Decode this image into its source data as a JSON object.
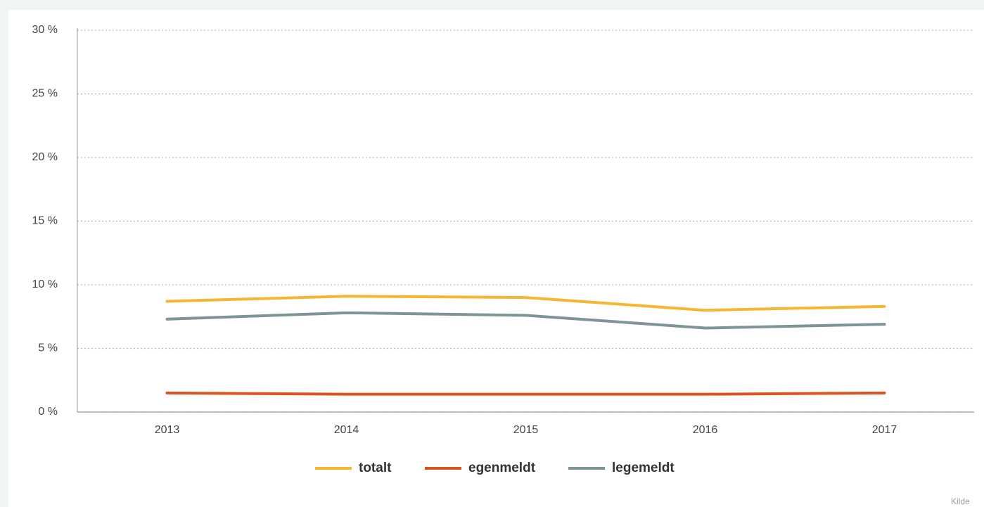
{
  "chart_data": {
    "type": "line",
    "categories": [
      "2013",
      "2014",
      "2015",
      "2016",
      "2017"
    ],
    "series": [
      {
        "name": "totalt",
        "color": "#f5b731",
        "values": [
          8.7,
          9.1,
          9.0,
          8.0,
          8.3
        ]
      },
      {
        "name": "egenmeldt",
        "color": "#d9541e",
        "values": [
          1.5,
          1.4,
          1.4,
          1.4,
          1.5
        ]
      },
      {
        "name": "legemeldt",
        "color": "#7d9598",
        "values": [
          7.3,
          7.8,
          7.6,
          6.6,
          6.9
        ]
      }
    ],
    "ylim": [
      0,
      30
    ],
    "yticks": [
      {
        "value": 0,
        "label": "0 %"
      },
      {
        "value": 5,
        "label": "5 %"
      },
      {
        "value": 10,
        "label": "10 %"
      },
      {
        "value": 15,
        "label": "15 %"
      },
      {
        "value": 20,
        "label": "20 %"
      },
      {
        "value": 25,
        "label": "25 %"
      },
      {
        "value": 30,
        "label": "30 %"
      }
    ],
    "grid": true,
    "legend": "bottom",
    "source": "Kilde"
  }
}
